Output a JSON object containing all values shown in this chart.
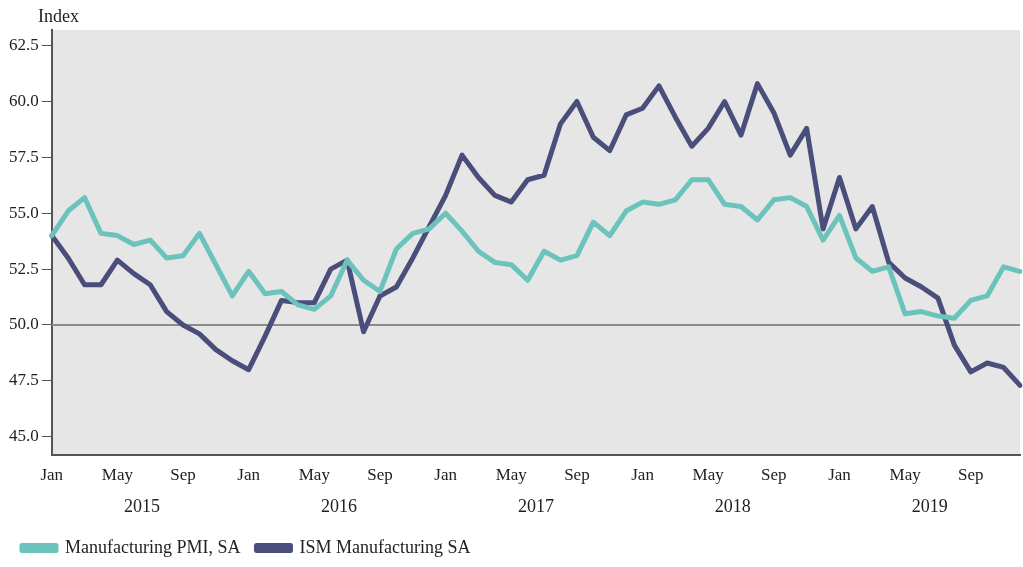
{
  "chart_data": {
    "type": "line",
    "ylabel": "Index",
    "categories": [
      "Jan",
      null,
      null,
      null,
      "May",
      null,
      null,
      null,
      "Sep",
      null,
      null,
      null,
      "Jan",
      null,
      null,
      null,
      "May",
      null,
      null,
      null,
      "Sep",
      null,
      null,
      null,
      "Jan",
      null,
      null,
      null,
      "May",
      null,
      null,
      null,
      "Sep",
      null,
      null,
      null,
      "Jan",
      null,
      null,
      null,
      "May",
      null,
      null,
      null,
      "Sep",
      null,
      null,
      null,
      "Jan",
      null,
      null,
      null,
      "May",
      null,
      null,
      null,
      "Sep",
      null,
      null,
      null
    ],
    "annotations": [
      "2015",
      "2016",
      "2017",
      "2018",
      "2019"
    ],
    "ylim": [
      44.2,
      63.2
    ],
    "yticks": [
      {
        "value": 45,
        "label": "45.0"
      },
      47.5,
      {
        "value": 50,
        "label": "50.0"
      },
      52.5,
      {
        "value": 55,
        "label": "55.0"
      },
      57.5,
      {
        "value": 60,
        "label": "60.0"
      },
      62.5
    ],
    "ref_lines": [
      {
        "axis": "y",
        "value": 50,
        "color": "#8c8c8c"
      }
    ],
    "grid": false,
    "legend": "bottom",
    "marker": "none",
    "line_style": "solid",
    "series": [
      {
        "name": "Manufacturing PMI, SA",
        "color": "#6cc3bc",
        "values": [
          54.0,
          55.1,
          55.7,
          54.1,
          54.0,
          53.6,
          53.8,
          53.0,
          53.1,
          54.1,
          52.7,
          51.3,
          52.4,
          51.4,
          51.5,
          50.9,
          50.7,
          51.3,
          52.9,
          52.0,
          51.5,
          53.4,
          54.1,
          54.3,
          55.0,
          54.2,
          53.3,
          52.8,
          52.7,
          52.0,
          53.3,
          52.9,
          53.1,
          54.6,
          54.0,
          55.1,
          55.5,
          55.4,
          55.6,
          56.5,
          56.5,
          55.4,
          55.3,
          54.7,
          55.6,
          55.7,
          55.3,
          53.8,
          54.9,
          53.0,
          52.4,
          52.6,
          50.5,
          50.6,
          50.4,
          50.3,
          51.1,
          51.3,
          52.6,
          52.4
        ]
      },
      {
        "name": "ISM Manufacturing SA",
        "color": "#4a4e7a",
        "values": [
          54.0,
          53.0,
          51.8,
          51.8,
          52.9,
          52.3,
          51.8,
          50.6,
          50.0,
          49.6,
          48.9,
          48.4,
          48.0,
          49.5,
          51.1,
          51.0,
          51.0,
          52.5,
          52.9,
          49.7,
          51.3,
          51.7,
          53.0,
          54.4,
          55.8,
          57.6,
          56.6,
          55.8,
          55.5,
          56.5,
          56.7,
          59.0,
          60.0,
          58.4,
          57.8,
          59.4,
          59.7,
          60.7,
          59.3,
          58.0,
          58.8,
          60.0,
          58.5,
          60.8,
          59.5,
          57.6,
          58.8,
          54.3,
          56.6,
          54.3,
          55.3,
          52.8,
          52.1,
          51.7,
          51.2,
          49.1,
          47.9,
          48.3,
          48.1,
          47.3
        ]
      }
    ]
  }
}
